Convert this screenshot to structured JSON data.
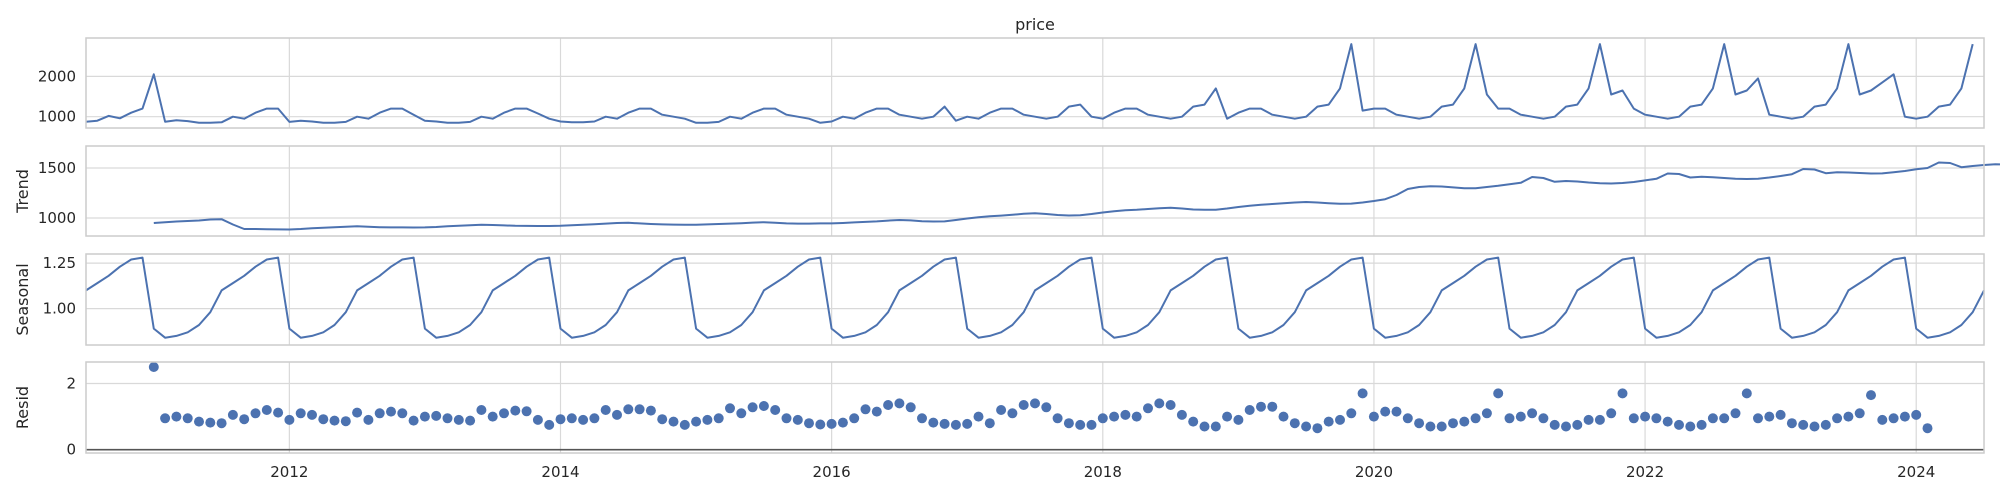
{
  "chart_data": {
    "type": "line",
    "title": "price",
    "xlabel": "",
    "xlim": [
      2010.5,
      2024.5
    ],
    "x_ticks": [
      2012,
      2014,
      2016,
      2018,
      2020,
      2022,
      2024
    ],
    "x_tick_labels": [
      "2012",
      "2014",
      "2016",
      "2018",
      "2020",
      "2022",
      "2024"
    ],
    "grid": true,
    "line_color": "#4c72b0",
    "frame_color": "#cccccc",
    "subplots": [
      {
        "id": "price",
        "type": "line",
        "ylabel": "",
        "ylim": [
          720,
          2950
        ],
        "y_ticks": [
          1000,
          2000
        ],
        "y_tick_labels": [
          "1000",
          "2000"
        ],
        "start": "2010-07",
        "values": [
          875,
          900,
          1020,
          960,
          1100,
          1200,
          2050,
          875,
          910,
          890,
          850,
          850,
          860,
          1000,
          950,
          1100,
          1200,
          1200,
          870,
          900,
          880,
          850,
          850,
          870,
          1000,
          950,
          1100,
          1200,
          1200,
          1050,
          900,
          880,
          850,
          850,
          870,
          1000,
          950,
          1100,
          1200,
          1200,
          1080,
          950,
          880,
          860,
          860,
          880,
          1000,
          950,
          1100,
          1200,
          1200,
          1050,
          1000,
          950,
          850,
          850,
          870,
          1000,
          950,
          1100,
          1200,
          1200,
          1050,
          1000,
          950,
          850,
          880,
          1000,
          950,
          1100,
          1200,
          1200,
          1050,
          1000,
          950,
          1000,
          1250,
          900,
          1000,
          950,
          1100,
          1200,
          1200,
          1050,
          1000,
          950,
          1000,
          1250,
          1300,
          1000,
          950,
          1100,
          1200,
          1200,
          1050,
          1000,
          950,
          1000,
          1250,
          1300,
          1700,
          950,
          1100,
          1200,
          1200,
          1050,
          1000,
          950,
          1000,
          1250,
          1300,
          1700,
          2800,
          1150,
          1200,
          1200,
          1050,
          1000,
          950,
          1000,
          1250,
          1300,
          1700,
          2800,
          1550,
          1200,
          1200,
          1050,
          1000,
          950,
          1000,
          1250,
          1300,
          1700,
          2800,
          1550,
          1650,
          1200,
          1050,
          1000,
          950,
          1000,
          1250,
          1300,
          1700,
          2800,
          1550,
          1650,
          1950,
          1050,
          1000,
          950,
          1000,
          1250,
          1300,
          1700,
          2800,
          1550,
          1650,
          1850,
          2050,
          1000,
          950,
          1000,
          1250,
          1300,
          1700,
          2800
        ]
      },
      {
        "id": "trend",
        "type": "line",
        "ylabel": "Trend",
        "ylim": [
          820,
          1720
        ],
        "y_ticks": [
          1000,
          1500
        ],
        "y_tick_labels": [
          "1000",
          "1500"
        ],
        "start": "2011-01",
        "values": [
          950,
          958,
          965,
          970,
          975,
          985,
          988,
          935,
          890,
          890,
          888,
          886,
          885,
          890,
          898,
          903,
          908,
          912,
          917,
          912,
          908,
          906,
          906,
          905,
          906,
          910,
          917,
          922,
          928,
          932,
          930,
          926,
          922,
          921,
          920,
          920,
          922,
          928,
          933,
          938,
          944,
          950,
          952,
          946,
          940,
          936,
          934,
          932,
          932,
          936,
          940,
          944,
          948,
          954,
          958,
          952,
          946,
          944,
          944,
          946,
          946,
          950,
          956,
          961,
          966,
          974,
          980,
          976,
          968,
          965,
          966,
          980,
          995,
          1008,
          1018,
          1024,
          1032,
          1042,
          1048,
          1040,
          1030,
          1025,
          1028,
          1040,
          1055,
          1068,
          1078,
          1082,
          1090,
          1098,
          1102,
          1095,
          1085,
          1082,
          1083,
          1095,
          1110,
          1122,
          1132,
          1140,
          1148,
          1155,
          1160,
          1155,
          1148,
          1142,
          1144,
          1155,
          1170,
          1188,
          1230,
          1290,
          1310,
          1318,
          1315,
          1306,
          1298,
          1298,
          1310,
          1322,
          1338,
          1352,
          1410,
          1400,
          1362,
          1370,
          1365,
          1355,
          1348,
          1345,
          1350,
          1360,
          1376,
          1392,
          1445,
          1440,
          1405,
          1412,
          1408,
          1400,
          1393,
          1390,
          1393,
          1405,
          1420,
          1438,
          1490,
          1485,
          1448,
          1458,
          1455,
          1450,
          1445,
          1446,
          1458,
          1470,
          1488,
          1500,
          1555,
          1550,
          1508,
          1520,
          1530,
          1538,
          1535,
          1535,
          1543,
          1555,
          1570,
          1585,
          1648
        ]
      },
      {
        "id": "seasonal",
        "type": "line",
        "ylabel": "Seasonal",
        "ylim": [
          0.8,
          1.3
        ],
        "y_ticks": [
          1.0,
          1.25
        ],
        "y_tick_labels": [
          "1.00",
          "1.25"
        ],
        "start": "2010-07",
        "pattern_by_month": [
          0.89,
          0.84,
          0.85,
          0.87,
          0.91,
          0.98,
          1.1,
          1.14,
          1.18,
          1.23,
          1.27,
          1.28
        ],
        "count": 169
      },
      {
        "id": "resid",
        "type": "scatter",
        "ylabel": "Resid",
        "ylim": [
          -0.1,
          2.65
        ],
        "y_ticks": [
          0,
          2
        ],
        "y_tick_labels": [
          "0",
          "2"
        ],
        "baseline": 0,
        "start": "2011-01",
        "values": [
          2.5,
          0.95,
          1.0,
          0.95,
          0.85,
          0.82,
          0.8,
          1.05,
          0.92,
          1.1,
          1.2,
          1.12,
          0.9,
          1.1,
          1.05,
          0.92,
          0.88,
          0.86,
          1.12,
          0.9,
          1.1,
          1.15,
          1.1,
          0.88,
          1.0,
          1.02,
          0.95,
          0.9,
          0.88,
          1.2,
          1.0,
          1.1,
          1.18,
          1.16,
          0.9,
          0.75,
          0.92,
          0.95,
          0.9,
          0.95,
          1.2,
          1.05,
          1.22,
          1.22,
          1.18,
          0.92,
          0.85,
          0.75,
          0.85,
          0.9,
          0.95,
          1.25,
          1.1,
          1.28,
          1.32,
          1.2,
          0.95,
          0.9,
          0.8,
          0.76,
          0.78,
          0.82,
          0.95,
          1.22,
          1.15,
          1.35,
          1.4,
          1.28,
          0.95,
          0.82,
          0.78,
          0.75,
          0.78,
          1.0,
          0.8,
          1.2,
          1.1,
          1.35,
          1.4,
          1.28,
          0.95,
          0.8,
          0.75,
          0.75,
          0.95,
          1.0,
          1.05,
          1.0,
          1.25,
          1.4,
          1.35,
          1.05,
          0.85,
          0.7,
          0.7,
          1.0,
          0.9,
          1.2,
          1.3,
          1.3,
          1.0,
          0.8,
          0.7,
          0.65,
          0.85,
          0.9,
          1.1,
          1.7,
          1.0,
          1.15,
          1.15,
          0.95,
          0.8,
          0.7,
          0.7,
          0.8,
          0.85,
          0.95,
          1.1,
          1.7,
          0.95,
          1.0,
          1.1,
          0.95,
          0.75,
          0.7,
          0.75,
          0.9,
          0.9,
          1.1,
          1.7,
          0.95,
          1.0,
          0.95,
          0.85,
          0.75,
          0.7,
          0.75,
          0.95,
          0.95,
          1.1,
          1.7,
          0.95,
          1.0,
          1.05,
          0.8,
          0.75,
          0.7,
          0.75,
          0.95,
          1.0,
          1.1,
          1.65,
          0.9,
          0.95,
          1.0,
          1.05,
          0.65
        ]
      }
    ]
  }
}
